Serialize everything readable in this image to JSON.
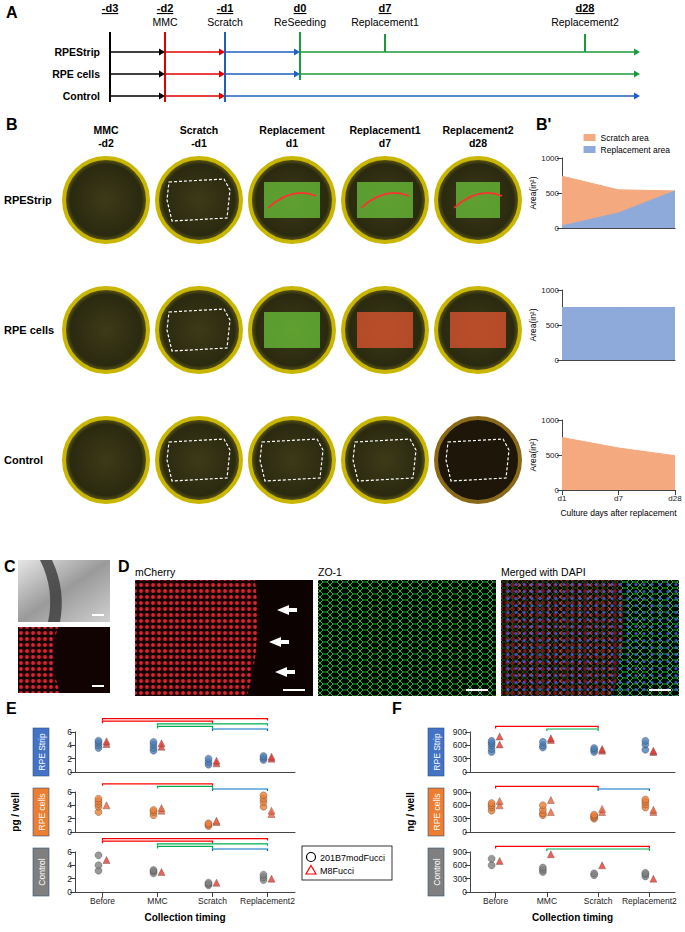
{
  "figure": {
    "A": {
      "label": "A",
      "timeline": [
        {
          "day": "-d3"
        },
        {
          "day": "-d2",
          "event": "MMC"
        },
        {
          "day": "-d1",
          "event": "Scratch"
        },
        {
          "day": "d0",
          "event": "ReSeeding"
        },
        {
          "day": "d7",
          "event": "Replacement1"
        },
        {
          "day": "d28",
          "event": "Replacement2"
        }
      ],
      "rows": [
        {
          "name": "RPEStrip",
          "reseeded": true
        },
        {
          "name": "RPE cells",
          "reseeded": true
        },
        {
          "name": "Control",
          "reseeded": false
        }
      ]
    },
    "B": {
      "label": "B",
      "columns": [
        {
          "title": "MMC",
          "day": "-d2"
        },
        {
          "title": "Scratch",
          "day": "-d1"
        },
        {
          "title": "Replacement",
          "day": "d1"
        },
        {
          "title": "Replacement1",
          "day": "d7"
        },
        {
          "title": "Replacement2",
          "day": "d28"
        }
      ],
      "rows": [
        "RPEStrip",
        "RPE cells",
        "Control"
      ]
    },
    "B_prime": {
      "label": "B'"
    },
    "C": {
      "label": "C"
    },
    "D": {
      "label": "D",
      "images": [
        "mCherry",
        "ZO-1",
        "Merged with DAPI"
      ]
    },
    "E": {
      "label": "E",
      "y_label": "pg / well"
    },
    "F": {
      "label": "F",
      "y_label": "ng / well"
    },
    "key": [
      {
        "name": "201B7modFucci",
        "marker": "circle",
        "color": "#000000"
      },
      {
        "name": "M8Fucci",
        "marker": "triangle",
        "color": "#ff0000"
      }
    ]
  },
  "chart_data": [
    {
      "type": "area",
      "y_label": "Area(in²)",
      "categories": [
        "d1",
        "d7",
        "d28"
      ],
      "ylim": [
        0,
        1000
      ],
      "yticks": [
        0,
        500,
        1000
      ],
      "grid": false,
      "tick_labels": "y",
      "legend": "top right",
      "series": [
        {
          "name": "Scratch area",
          "color": "#f4a97f",
          "values": [
            740,
            545,
            530
          ]
        },
        {
          "name": "Replacement area",
          "color": "#8eaadb",
          "values": [
            30,
            215,
            530
          ]
        }
      ]
    },
    {
      "type": "area",
      "y_label": "Area(in²)",
      "categories": [
        "d1",
        "d7",
        "d28"
      ],
      "ylim": [
        0,
        1000
      ],
      "yticks": [
        0,
        500,
        1000
      ],
      "grid": false,
      "tick_labels": "y",
      "series": [
        {
          "name": "Replacement area",
          "color": "#8eaadb",
          "values": [
            750,
            750,
            750
          ]
        }
      ]
    },
    {
      "type": "area",
      "y_label": "Area(in²)",
      "x_label": "Culture days after replacement",
      "categories": [
        "d1",
        "d7",
        "d28"
      ],
      "ylim": [
        0,
        1000
      ],
      "yticks": [
        0,
        500,
        1000
      ],
      "grid": false,
      "series": [
        {
          "name": "Scratch area",
          "color": "#f4a97f",
          "values": [
            750,
            600,
            490
          ]
        }
      ]
    },
    {
      "type": "scatter",
      "title": "RPE Strip",
      "color": "#4472c4",
      "categories": [
        "Before",
        "MMC",
        "Scratch",
        "Replacement2"
      ],
      "ylim": [
        0,
        6
      ],
      "yticks": [
        0,
        2,
        4,
        6
      ],
      "grid": false,
      "tick_labels": "y",
      "series": [
        {
          "name": "201B7modFucci",
          "marker": "circle",
          "color": "#4a7ebb",
          "values": [
            [
              3.6,
              4.0,
              4.4,
              4.7
            ],
            [
              3.2,
              3.6,
              4.1,
              4.5
            ],
            [
              1.1,
              1.5,
              2.0
            ],
            [
              1.8,
              2.1,
              2.4
            ]
          ]
        },
        {
          "name": "M8Fucci",
          "marker": "triangle",
          "color": "#e8392e",
          "values": [
            [
              4.2,
              4.6
            ],
            [
              3.8,
              4.3
            ],
            [
              1.3,
              1.7
            ],
            [
              2.0,
              2.3
            ]
          ]
        }
      ],
      "comparisons": [
        {
          "from": "Before",
          "to": "Replacement2",
          "color": "#ff0000"
        },
        {
          "from": "Before",
          "to": "Scratch",
          "color": "#ff0000"
        },
        {
          "from": "MMC",
          "to": "Replacement2",
          "color": "#00b050"
        },
        {
          "from": "MMC",
          "to": "Scratch",
          "color": "#00b050"
        },
        {
          "from": "Scratch",
          "to": "Replacement2",
          "color": "#0070c0"
        }
      ]
    },
    {
      "type": "scatter",
      "title": "RPE cells",
      "color": "#ed7d31",
      "categories": [
        "Before",
        "MMC",
        "Scratch",
        "Replacement2"
      ],
      "ylim": [
        0,
        6
      ],
      "yticks": [
        0,
        2,
        4,
        6
      ],
      "grid": false,
      "tick_labels": "y",
      "series": [
        {
          "name": "201B7modFucci",
          "marker": "circle",
          "color": "#ed7d31",
          "values": [
            [
              3.0,
              3.8,
              4.2,
              4.6,
              5.0
            ],
            [
              2.5,
              3.0,
              3.3
            ],
            [
              0.9,
              1.1,
              1.3
            ],
            [
              3.8,
              4.5,
              5.0,
              5.5
            ]
          ]
        },
        {
          "name": "M8Fucci",
          "marker": "triangle",
          "color": "#f2603a",
          "values": [
            [
              4.0
            ],
            [
              3.2,
              3.6
            ],
            [
              1.5,
              1.7
            ],
            [
              2.7,
              3.2
            ]
          ]
        }
      ],
      "comparisons": [
        {
          "from": "Before",
          "to": "Scratch",
          "color": "#ff0000"
        },
        {
          "from": "MMC",
          "to": "Scratch",
          "color": "#00b050"
        },
        {
          "from": "Scratch",
          "to": "Replacement2",
          "color": "#0070c0"
        }
      ]
    },
    {
      "type": "scatter",
      "title": "Control",
      "color": "#7f7f7f",
      "x_label": "Collection timing",
      "categories": [
        "Before",
        "MMC",
        "Scratch",
        "Replacement2"
      ],
      "ylim": [
        0,
        6
      ],
      "yticks": [
        0,
        2,
        4,
        6
      ],
      "grid": false,
      "series": [
        {
          "name": "201B7modFucci",
          "marker": "circle",
          "color": "#808080",
          "values": [
            [
              3.2,
              4.0,
              5.5
            ],
            [
              2.8,
              3.1,
              3.3
            ],
            [
              1.0,
              1.2,
              1.4
            ],
            [
              1.8,
              2.2,
              2.6
            ]
          ]
        },
        {
          "name": "M8Fucci",
          "marker": "triangle",
          "color": "#e8392e",
          "values": [
            [
              4.8
            ],
            [
              3.0
            ],
            [
              1.4
            ],
            [
              2.0
            ]
          ]
        }
      ],
      "comparisons": [
        {
          "from": "Before",
          "to": "Replacement2",
          "color": "#ff0000"
        },
        {
          "from": "Before",
          "to": "Scratch",
          "color": "#ff0000"
        },
        {
          "from": "MMC",
          "to": "Replacement2",
          "color": "#00b050"
        },
        {
          "from": "MMC",
          "to": "Scratch",
          "color": "#00b050"
        },
        {
          "from": "Scratch",
          "to": "Replacement2",
          "color": "#0070c0"
        }
      ]
    },
    {
      "type": "scatter",
      "title": "RPE Strip",
      "color": "#4472c4",
      "categories": [
        "Before",
        "MMC",
        "Scratch",
        "Replacement2"
      ],
      "ylim": [
        0,
        900
      ],
      "yticks": [
        0,
        300,
        600,
        900
      ],
      "grid": false,
      "tick_labels": "y",
      "series": [
        {
          "name": "201B7modFucci",
          "marker": "circle",
          "color": "#4a7ebb",
          "values": [
            [
              450,
              520,
              600,
              650,
              700
            ],
            [
              550,
              600,
              680
            ],
            [
              450,
              500,
              540
            ],
            [
              500,
              620,
              700
            ]
          ]
        },
        {
          "name": "M8Fucci",
          "marker": "triangle",
          "color": "#e8392e",
          "values": [
            [
              620,
              800
            ],
            [
              720,
              760
            ],
            [
              480,
              520
            ],
            [
              450,
              480
            ]
          ]
        }
      ],
      "comparisons": [
        {
          "from": "Before",
          "to": "Scratch",
          "color": "#ff0000"
        },
        {
          "from": "MMC",
          "to": "Scratch",
          "color": "#00b050"
        }
      ]
    },
    {
      "type": "scatter",
      "title": "RPE cells",
      "color": "#ed7d31",
      "categories": [
        "Before",
        "MMC",
        "Scratch",
        "Replacement2"
      ],
      "ylim": [
        0,
        900
      ],
      "yticks": [
        0,
        300,
        600,
        900
      ],
      "grid": false,
      "tick_labels": "y",
      "series": [
        {
          "name": "201B7modFucci",
          "marker": "circle",
          "color": "#ed7d31",
          "values": [
            [
              480,
              550,
              600,
              650
            ],
            [
              380,
              420,
              500,
              600
            ],
            [
              300,
              330,
              360,
              390
            ],
            [
              550,
              620,
              680,
              730
            ]
          ]
        },
        {
          "name": "M8Fucci",
          "marker": "triangle",
          "color": "#f2603a",
          "values": [
            [
              600,
              700
            ],
            [
              450,
              720
            ],
            [
              450,
              520
            ],
            [
              450,
              500
            ]
          ]
        }
      ],
      "comparisons": [
        {
          "from": "Before",
          "to": "Scratch",
          "color": "#ff0000"
        },
        {
          "from": "Scratch",
          "to": "Replacement2",
          "color": "#0070c0"
        }
      ]
    },
    {
      "type": "scatter",
      "title": "Control",
      "color": "#7f7f7f",
      "x_label": "Collection timing",
      "categories": [
        "Before",
        "MMC",
        "Scratch",
        "Replacement2"
      ],
      "ylim": [
        0,
        900
      ],
      "yticks": [
        0,
        300,
        600,
        900
      ],
      "grid": false,
      "series": [
        {
          "name": "201B7modFucci",
          "marker": "circle",
          "color": "#808080",
          "values": [
            [
              600,
              750
            ],
            [
              450,
              500,
              550
            ],
            [
              380,
              420
            ],
            [
              350,
              400,
              430
            ]
          ]
        },
        {
          "name": "M8Fucci",
          "marker": "triangle",
          "color": "#e8392e",
          "values": [
            [
              700
            ],
            [
              850
            ],
            [
              600
            ],
            [
              300
            ]
          ]
        }
      ],
      "comparisons": [
        {
          "from": "Before",
          "to": "Replacement2",
          "color": "#ff0000"
        },
        {
          "from": "MMC",
          "to": "Replacement2",
          "color": "#00b050"
        }
      ]
    }
  ]
}
